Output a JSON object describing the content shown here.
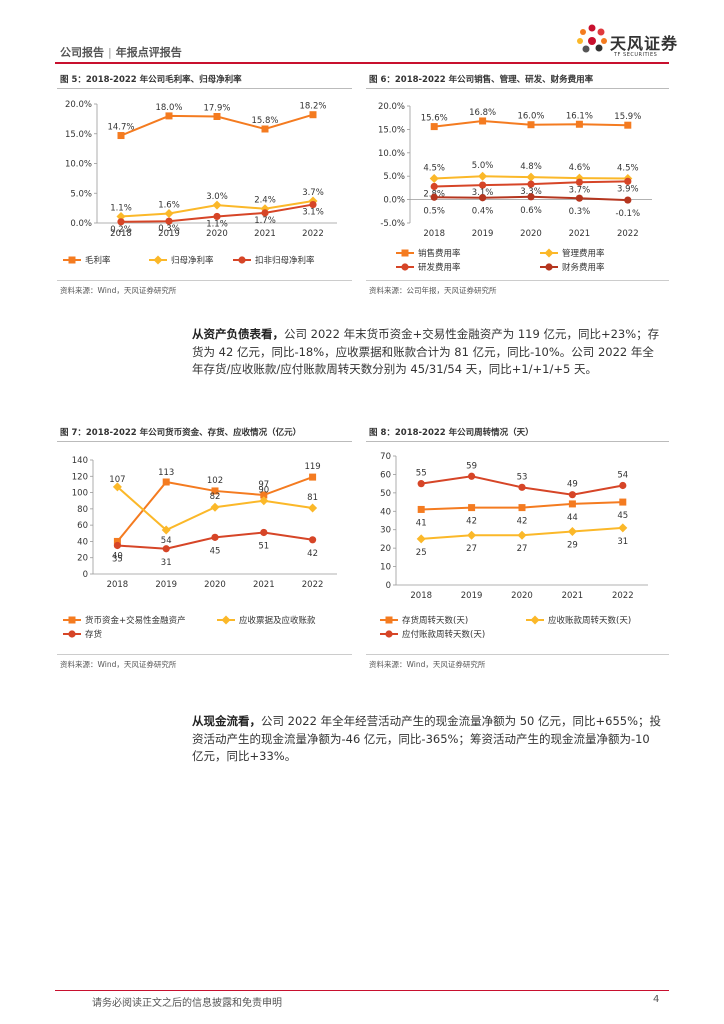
{
  "header": {
    "report_type": "公司报告",
    "separator": "|",
    "report_subtype": "年报点评报告",
    "brand_name": "天风证券",
    "brand_sub": "TF SECURITIES"
  },
  "colors": {
    "orange": "#f47b20",
    "yellow": "#fbb829",
    "red": "#d64527",
    "accent": "#c8102e"
  },
  "figures": {
    "fig5": {
      "title": "图 5：2018-2022 年公司毛利率、归母净利率",
      "source": "资料来源：Wind，天风证券研究所"
    },
    "fig6": {
      "title": "图 6：2018-2022 年公司销售、管理、研发、财务费用率",
      "source": "资料来源：公司年报，天风证券研究所"
    },
    "fig7": {
      "title": "图 7：2018-2022 年公司货币资金、存货、应收情况（亿元）",
      "source": "资料来源：Wind，天风证券研究所"
    },
    "fig8": {
      "title": "图 8：2018-2022 年公司周转情况（天）",
      "source": "资料来源：Wind，天风证券研究所"
    }
  },
  "paragraphs": {
    "balance": {
      "lead": "从资产负债表看，",
      "text": "公司 2022 年末货币资金+交易性金融资产为 119 亿元，同比+23%；存货为 42 亿元，同比-18%，应收票据和账款合计为 81 亿元，同比-10%。公司 2022 年全年存货/应收账款/应付账款周转天数分别为 45/31/54 天，同比+1/+1/+5 天。"
    },
    "cashflow": {
      "lead": "从现金流看，",
      "text": "公司 2022 年全年经营活动产生的现金流量净额为 50 亿元，同比+655%；投资活动产生的现金流量净额为-46 亿元，同比-365%；筹资活动产生的现金流量净额为-10 亿元，同比+33%。"
    }
  },
  "footer": {
    "disclaimer": "请务必阅读正文之后的信息披露和免责申明",
    "page": "4"
  },
  "chart_data": [
    {
      "id": "fig5",
      "type": "line",
      "categories": [
        "2018",
        "2019",
        "2020",
        "2021",
        "2022"
      ],
      "ylim": [
        0,
        20
      ],
      "yticks": [
        "0.0%",
        "5.0%",
        "10.0%",
        "15.0%",
        "20.0%"
      ],
      "series": [
        {
          "name": "毛利率",
          "color": "#f47b20",
          "marker": "square",
          "values": [
            14.7,
            18.0,
            17.9,
            15.8,
            18.2
          ],
          "labels": [
            "14.7%",
            "18.0%",
            "17.9%",
            "15.8%",
            "18.2%"
          ]
        },
        {
          "name": "归母净利率",
          "color": "#fbb829",
          "marker": "diamond",
          "values": [
            1.1,
            1.6,
            3.0,
            2.4,
            3.7
          ],
          "labels": [
            "1.1%",
            "1.6%",
            "3.0%",
            "2.4%",
            "3.7%"
          ]
        },
        {
          "name": "扣非归母净利率",
          "color": "#d64527",
          "marker": "circle",
          "values": [
            0.2,
            0.3,
            1.1,
            1.7,
            3.1
          ],
          "labels": [
            "0.2%",
            "0.3%",
            "1.1%",
            "1.7%",
            "3.1%"
          ]
        }
      ]
    },
    {
      "id": "fig6",
      "type": "line",
      "categories": [
        "2018",
        "2019",
        "2020",
        "2021",
        "2022"
      ],
      "ylim": [
        -5,
        20
      ],
      "yticks": [
        "-5.0%",
        "0.0%",
        "5.0%",
        "10.0%",
        "15.0%",
        "20.0%"
      ],
      "series": [
        {
          "name": "销售费用率",
          "color": "#f47b20",
          "marker": "square",
          "values": [
            15.6,
            16.8,
            16.0,
            16.1,
            15.9
          ],
          "labels": [
            "15.6%",
            "16.8%",
            "16.0%",
            "16.1%",
            "15.9%"
          ]
        },
        {
          "name": "管理费用率",
          "color": "#fbb829",
          "marker": "diamond",
          "values": [
            4.5,
            5.0,
            4.8,
            4.6,
            4.5
          ],
          "labels": [
            "4.5%",
            "5.0%",
            "4.8%",
            "4.6%",
            "4.5%"
          ]
        },
        {
          "name": "研发费用率",
          "color": "#d64527",
          "marker": "circle",
          "values": [
            2.8,
            3.1,
            3.3,
            3.7,
            3.9
          ],
          "labels": [
            "2.8%",
            "3.1%",
            "3.3%",
            "3.7%",
            "3.9%"
          ]
        },
        {
          "name": "财务费用率",
          "color": "#b5361f",
          "marker": "circle",
          "values": [
            0.5,
            0.4,
            0.6,
            0.3,
            -0.1
          ],
          "labels": [
            "0.5%",
            "0.4%",
            "0.6%",
            "0.3%",
            "-0.1%"
          ]
        }
      ]
    },
    {
      "id": "fig7",
      "type": "line",
      "categories": [
        "2018",
        "2019",
        "2020",
        "2021",
        "2022"
      ],
      "ylim": [
        0,
        140
      ],
      "yticks": [
        "0",
        "20",
        "40",
        "60",
        "80",
        "100",
        "120",
        "140"
      ],
      "series": [
        {
          "name": "货币资金+交易性金融资产",
          "color": "#f47b20",
          "marker": "square",
          "values": [
            40,
            113,
            102,
            97,
            119
          ],
          "labels": [
            "40",
            "113",
            "102",
            "97",
            "119"
          ]
        },
        {
          "name": "应收票据及应收账款",
          "color": "#fbb829",
          "marker": "diamond",
          "values": [
            107,
            54,
            82,
            90,
            81
          ],
          "labels": [
            "107",
            "54",
            "82",
            "90",
            "81"
          ]
        },
        {
          "name": "存货",
          "color": "#d64527",
          "marker": "circle",
          "values": [
            35,
            31,
            45,
            51,
            42
          ],
          "labels": [
            "35",
            "31",
            "45",
            "51",
            "42"
          ]
        }
      ]
    },
    {
      "id": "fig8",
      "type": "line",
      "categories": [
        "2018",
        "2019",
        "2020",
        "2021",
        "2022"
      ],
      "ylim": [
        0,
        70
      ],
      "yticks": [
        "0",
        "10",
        "20",
        "30",
        "40",
        "50",
        "60",
        "70"
      ],
      "series": [
        {
          "name": "存货周转天数(天)",
          "color": "#f47b20",
          "marker": "square",
          "values": [
            41,
            42,
            42,
            44,
            45
          ],
          "labels": [
            "41",
            "42",
            "42",
            "44",
            "45"
          ]
        },
        {
          "name": "应收账款周转天数(天)",
          "color": "#fbb829",
          "marker": "diamond",
          "values": [
            25,
            27,
            27,
            29,
            31
          ],
          "labels": [
            "25",
            "27",
            "27",
            "29",
            "31"
          ]
        },
        {
          "name": "应付账款周转天数(天)",
          "color": "#d64527",
          "marker": "circle",
          "values": [
            55,
            59,
            53,
            49,
            54
          ],
          "labels": [
            "55",
            "59",
            "53",
            "49",
            "54"
          ]
        }
      ]
    }
  ]
}
